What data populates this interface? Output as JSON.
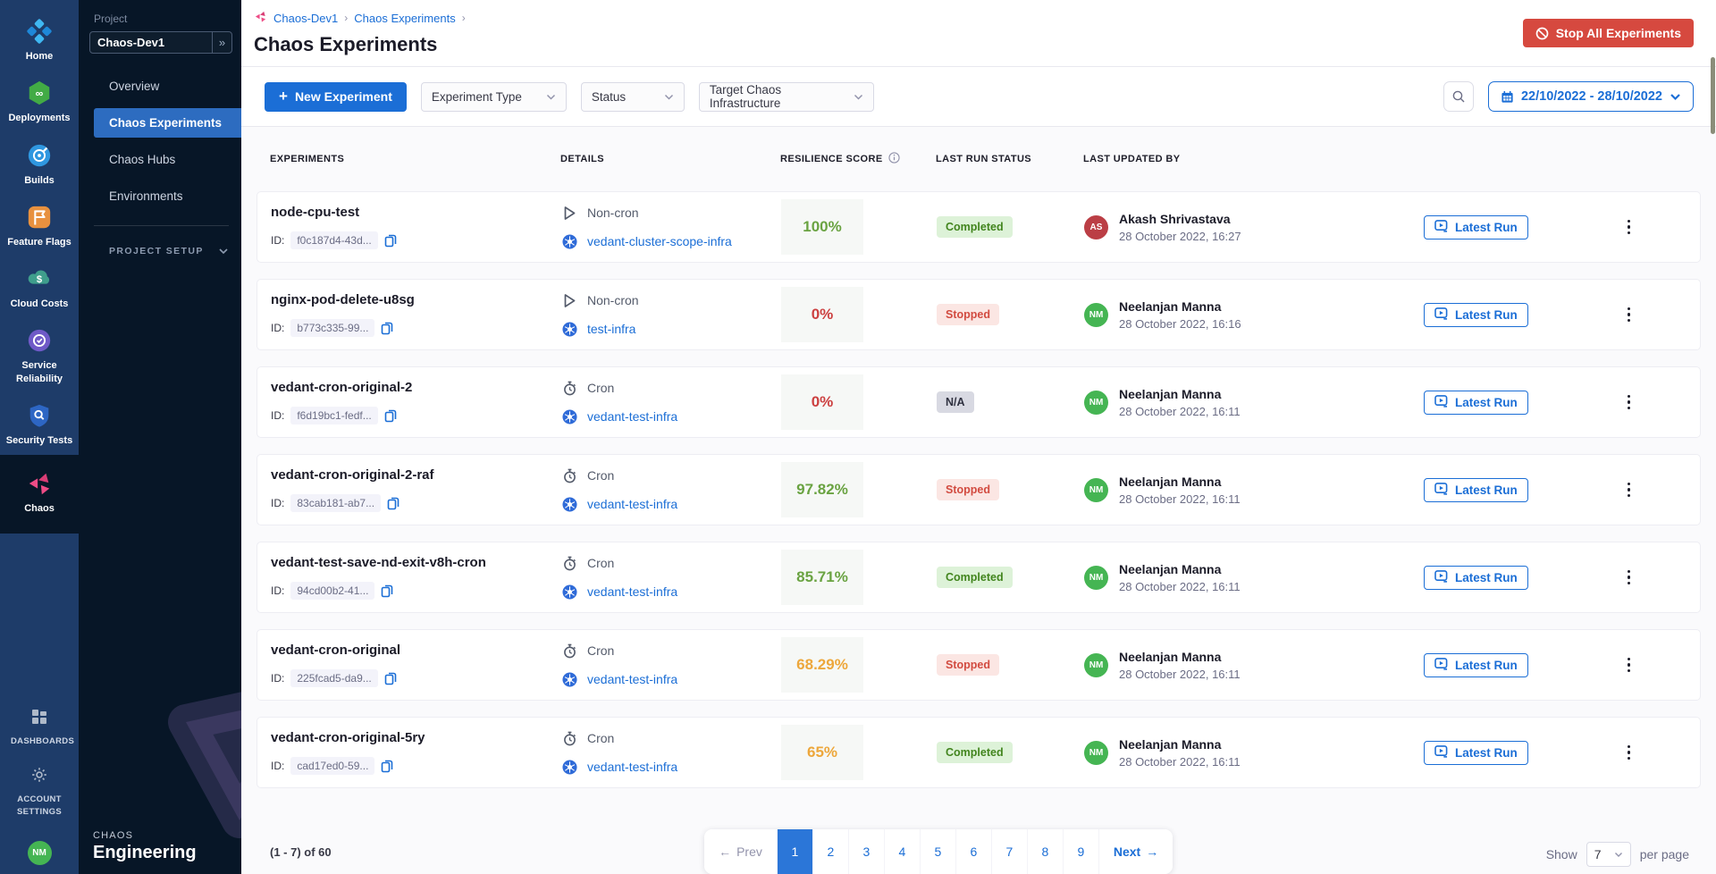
{
  "icons": {
    "plus": "+",
    "expand": "»",
    "breadcrumb_sep": "›",
    "prev_arrow": "←",
    "next_arrow": "→",
    "search": "magnifier",
    "calendar": "calendar-grid",
    "stop": "circle-slash",
    "kebab": "vertical-dots",
    "copy": "copy-squares",
    "info": "circle-i",
    "k8s": "k8s-wheel",
    "cron": "stopwatch",
    "non_cron": "play-outline",
    "latest_run": "run-play-rect",
    "chevron_down": "chevron-down"
  },
  "colors": {
    "primary_blue": "#1b6ed6",
    "active_nav_blue": "#2d6cc0",
    "danger_red": "#d6493f",
    "rail_navy": "#1e3c69",
    "panel_navy": "#071627",
    "score_green": "#6aa342",
    "score_red": "#cc4040",
    "score_orange": "#eda73b",
    "avatar_red": "#bb3e45",
    "avatar_green": "#45b553"
  },
  "sidebar": {
    "modules": [
      {
        "label": "Home",
        "icon": "home-harness",
        "active": false
      },
      {
        "label": "Deployments",
        "icon": "deployments",
        "active": false
      },
      {
        "label": "Builds",
        "icon": "builds",
        "active": false
      },
      {
        "label": "Feature Flags",
        "icon": "feature-flags",
        "active": false
      },
      {
        "label": "Cloud Costs",
        "icon": "cloud-costs",
        "active": false
      },
      {
        "label": "Service Reliability",
        "icon": "service-reliability",
        "active": false
      },
      {
        "label": "Security Tests",
        "icon": "security-tests",
        "active": false
      },
      {
        "label": "Chaos",
        "icon": "chaos",
        "active": true
      }
    ],
    "bottom": [
      {
        "label": "DASHBOARDS",
        "icon": "dashboards"
      },
      {
        "label": "ACCOUNT SETTINGS",
        "icon": "gear"
      }
    ],
    "avatar": "NM"
  },
  "project_nav": {
    "project_label": "Project",
    "project_name": "Chaos-Dev1",
    "items": [
      {
        "label": "Overview",
        "active": false
      },
      {
        "label": "Chaos Experiments",
        "active": true
      },
      {
        "label": "Chaos Hubs",
        "active": false
      },
      {
        "label": "Environments",
        "active": false
      }
    ],
    "section_label": "PROJECT SETUP",
    "brand_top": "CHAOS",
    "brand_name": "Engineering"
  },
  "header": {
    "breadcrumbs": [
      "Chaos-Dev1",
      "Chaos Experiments"
    ],
    "title": "Chaos Experiments",
    "stop_all_label": "Stop All Experiments"
  },
  "toolbar": {
    "new_experiment": "New Experiment",
    "filters": [
      "Experiment Type",
      "Status",
      "Target Chaos Infrastructure"
    ],
    "date_range": "22/10/2022 - 28/10/2022"
  },
  "table": {
    "columns": [
      {
        "label": "EXPERIMENTS",
        "info": false
      },
      {
        "label": "DETAILS",
        "info": false
      },
      {
        "label": "RESILIENCE SCORE",
        "info": true
      },
      {
        "label": "LAST RUN STATUS",
        "info": false
      },
      {
        "label": "LAST UPDATED BY",
        "info": false
      }
    ],
    "id_prefix": "ID:",
    "latest_run_label": "Latest Run",
    "rows": [
      {
        "name": "node-cpu-test",
        "id": "f0c187d4-43d...",
        "schedule": "Non-cron",
        "schedule_icon": "non_cron",
        "infra": "vedant-cluster-scope-infra",
        "score": "100%",
        "score_color": "green",
        "status": "Completed",
        "status_type": "completed",
        "user": "Akash Shrivastava",
        "initials": "AS",
        "avatar_color": "#bb3e45",
        "date": "28 October 2022, 16:27"
      },
      {
        "name": "nginx-pod-delete-u8sg",
        "id": "b773c335-99...",
        "schedule": "Non-cron",
        "schedule_icon": "non_cron",
        "infra": "test-infra",
        "score": "0%",
        "score_color": "red",
        "status": "Stopped",
        "status_type": "stopped",
        "user": "Neelanjan Manna",
        "initials": "NM",
        "avatar_color": "#45b553",
        "date": "28 October 2022, 16:16"
      },
      {
        "name": "vedant-cron-original-2",
        "id": "f6d19bc1-fedf...",
        "schedule": "Cron",
        "schedule_icon": "cron",
        "infra": "vedant-test-infra",
        "score": "0%",
        "score_color": "red",
        "status": "N/A",
        "status_type": "na",
        "user": "Neelanjan Manna",
        "initials": "NM",
        "avatar_color": "#45b553",
        "date": "28 October 2022, 16:11"
      },
      {
        "name": "vedant-cron-original-2-raf",
        "id": "83cab181-ab7...",
        "schedule": "Cron",
        "schedule_icon": "cron",
        "infra": "vedant-test-infra",
        "score": "97.82%",
        "score_color": "green",
        "status": "Stopped",
        "status_type": "stopped",
        "user": "Neelanjan Manna",
        "initials": "NM",
        "avatar_color": "#45b553",
        "date": "28 October 2022, 16:11"
      },
      {
        "name": "vedant-test-save-nd-exit-v8h-cron",
        "id": "94cd00b2-41...",
        "schedule": "Cron",
        "schedule_icon": "cron",
        "infra": "vedant-test-infra",
        "score": "85.71%",
        "score_color": "green",
        "status": "Completed",
        "status_type": "completed",
        "user": "Neelanjan Manna",
        "initials": "NM",
        "avatar_color": "#45b553",
        "date": "28 October 2022, 16:11"
      },
      {
        "name": "vedant-cron-original",
        "id": "225fcad5-da9...",
        "schedule": "Cron",
        "schedule_icon": "cron",
        "infra": "vedant-test-infra",
        "score": "68.29%",
        "score_color": "orange",
        "status": "Stopped",
        "status_type": "stopped",
        "user": "Neelanjan Manna",
        "initials": "NM",
        "avatar_color": "#45b553",
        "date": "28 October 2022, 16:11"
      },
      {
        "name": "vedant-cron-original-5ry",
        "id": "cad17ed0-59...",
        "schedule": "Cron",
        "schedule_icon": "cron",
        "infra": "vedant-test-infra",
        "score": "65%",
        "score_color": "orange",
        "status": "Completed",
        "status_type": "completed",
        "user": "Neelanjan Manna",
        "initials": "NM",
        "avatar_color": "#45b553",
        "date": "28 October 2022, 16:11"
      }
    ]
  },
  "pagination": {
    "summary": "(1 - 7) of 60",
    "prev_label": "Prev",
    "next_label": "Next",
    "pages": [
      "1",
      "2",
      "3",
      "4",
      "5",
      "6",
      "7",
      "8",
      "9"
    ],
    "active_page": "1",
    "show_label": "Show",
    "page_size": "7",
    "per_page_label": "per page"
  }
}
